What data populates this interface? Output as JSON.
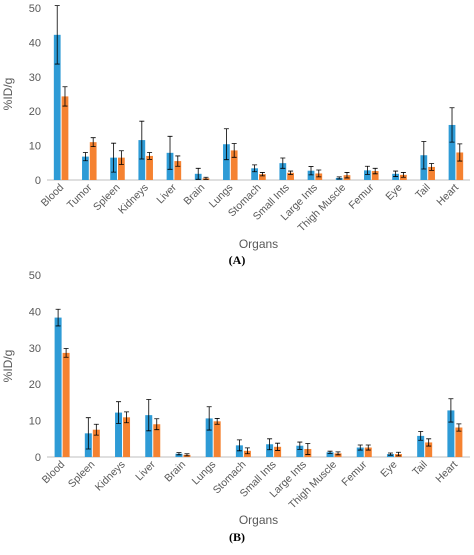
{
  "panels": [
    {
      "label": "(A)",
      "chart_data": {
        "type": "bar",
        "categories": [
          "Blood",
          "Tumor",
          "Spleen",
          "Kidneys",
          "Liver",
          "Brain",
          "Lungs",
          "Stomach",
          "Small Ints",
          "Large Ints",
          "Thigh Muscle",
          "Femur",
          "Eye",
          "Tail",
          "Heart"
        ],
        "series": [
          {
            "color": "#2e9bd6",
            "values": [
              42.2,
              6.8,
              6.5,
              11.6,
              7.9,
              1.8,
              10.4,
              3.4,
              4.9,
              2.7,
              0.6,
              2.8,
              1.8,
              7.2,
              16.0
            ],
            "errors": [
              8.5,
              1.2,
              4.2,
              5.5,
              4.8,
              1.6,
              4.5,
              1.0,
              1.5,
              1.2,
              0.3,
              1.2,
              0.8,
              4.0,
              5.0
            ]
          },
          {
            "color": "#f58231",
            "values": [
              24.3,
              11.0,
              6.5,
              7.0,
              5.5,
              0.5,
              8.6,
              1.7,
              2.1,
              1.9,
              1.4,
              2.6,
              1.5,
              3.8,
              8.0
            ],
            "errors": [
              2.8,
              1.3,
              2.0,
              1.0,
              1.5,
              0.3,
              2.0,
              0.5,
              0.5,
              1.0,
              0.8,
              0.8,
              0.7,
              1.0,
              2.5
            ]
          }
        ],
        "xlabel": "Organs",
        "ylabel": "%ID/g",
        "ylim": [
          0,
          50
        ],
        "yticks": [
          "0",
          "10",
          "20",
          "30",
          "40",
          "50"
        ]
      }
    },
    {
      "label": "(B)",
      "chart_data": {
        "type": "bar",
        "categories": [
          "Blood",
          "Spleen",
          "Kidneys",
          "Liver",
          "Brain",
          "Lungs",
          "Stomach",
          "Small Ints",
          "Large Ints",
          "Thigh Muscle",
          "Femur",
          "Eye",
          "Tail",
          "Heart"
        ],
        "series": [
          {
            "color": "#2e9bd6",
            "values": [
              38.3,
              6.5,
              12.2,
              11.5,
              0.9,
              10.6,
              3.2,
              3.5,
              3.1,
              1.3,
              2.6,
              0.8,
              5.8,
              12.8
            ],
            "errors": [
              2.3,
              4.3,
              3.0,
              4.3,
              0.3,
              3.2,
              1.5,
              1.5,
              1.0,
              0.3,
              0.7,
              0.3,
              1.2,
              3.2
            ]
          },
          {
            "color": "#f58231",
            "values": [
              28.6,
              7.5,
              10.9,
              9.0,
              0.6,
              9.8,
              1.7,
              2.8,
              2.2,
              1.0,
              2.6,
              0.8,
              4.0,
              8.1
            ],
            "errors": [
              1.2,
              1.5,
              1.5,
              1.5,
              0.3,
              0.8,
              0.8,
              1.0,
              1.5,
              0.4,
              0.7,
              0.5,
              1.0,
              1.0
            ]
          }
        ],
        "xlabel": "Organs",
        "ylabel": "%ID/g",
        "ylim": [
          0,
          50
        ],
        "yticks": [
          "0",
          "10",
          "20",
          "30",
          "40",
          "50"
        ]
      }
    }
  ]
}
